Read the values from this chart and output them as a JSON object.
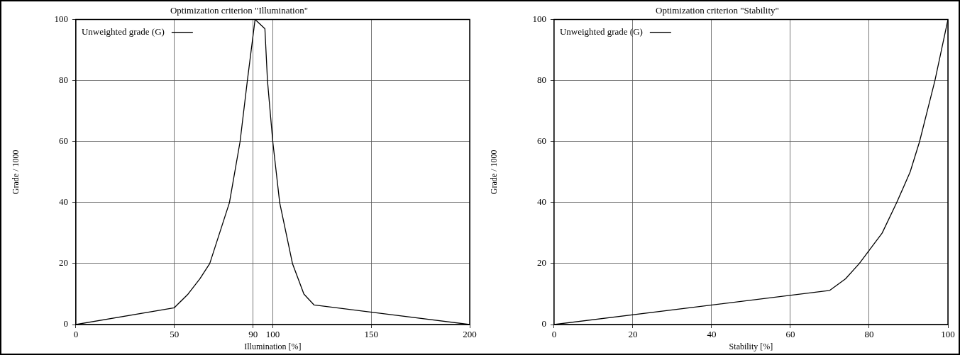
{
  "chart_data": [
    {
      "type": "line",
      "title": "Optimization criterion \"Illumination\"",
      "xlabel": "Illumination [%]",
      "ylabel": "Grade / 1000",
      "legend": "top left",
      "grid": true,
      "marker": "none",
      "line_style": "solid",
      "xlim": [
        0,
        200
      ],
      "xticks": [
        0,
        50,
        90,
        100,
        150,
        200
      ],
      "ylim": [
        0,
        100
      ],
      "yticks": [
        0,
        20,
        40,
        60,
        80,
        100
      ],
      "series": [
        {
          "name": "Unweighted grade (G)",
          "color": "#000000",
          "x": [
            0,
            50,
            57,
            63,
            68,
            78,
            83.4,
            87.1,
            91,
            96,
            97.3,
            100,
            103.5,
            110,
            115.8,
            121,
            200
          ],
          "values": [
            0,
            5.5,
            10,
            15,
            20,
            40,
            60,
            80,
            100,
            97,
            80,
            60,
            40,
            20,
            10,
            6.4,
            0
          ]
        }
      ]
    },
    {
      "type": "line",
      "title": "Optimization criterion \"Stability\"",
      "xlabel": "Stability [%]",
      "ylabel": "Grade / 1000",
      "legend": "top left",
      "grid": true,
      "marker": "none",
      "line_style": "solid",
      "xlim": [
        0,
        100
      ],
      "xticks": [
        0,
        20,
        40,
        60,
        80,
        100
      ],
      "ylim": [
        0,
        100
      ],
      "yticks": [
        0,
        20,
        40,
        60,
        80,
        100
      ],
      "series": [
        {
          "name": "Unweighted grade (G)",
          "color": "#000000",
          "x": [
            0,
            70,
            74,
            77.5,
            83.3,
            87,
            90.4,
            92.8,
            96.7,
            100
          ],
          "values": [
            0,
            11.2,
            15,
            20,
            30,
            40,
            50,
            60,
            80,
            100
          ]
        }
      ]
    }
  ]
}
